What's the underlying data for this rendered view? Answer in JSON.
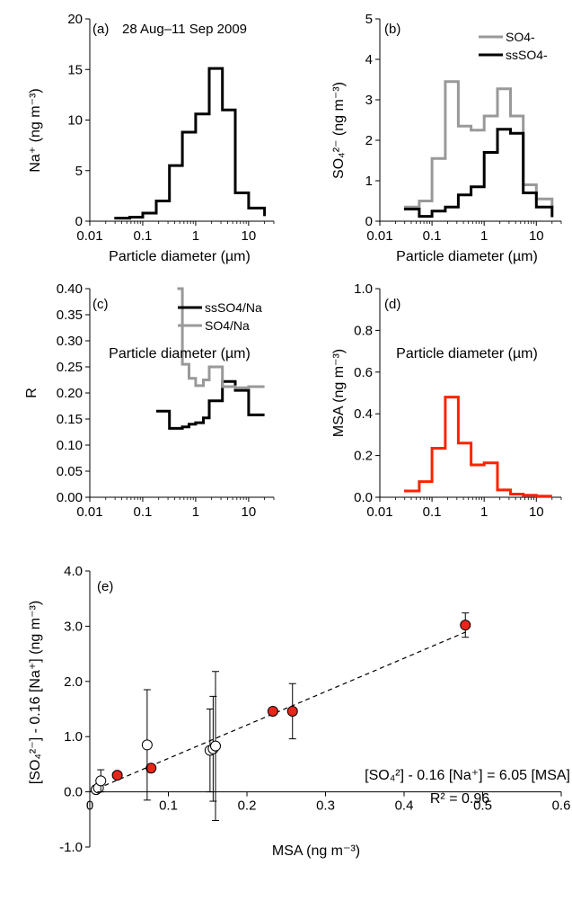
{
  "colors": {
    "black": "#000000",
    "grey": "#999999",
    "red": "#ff2200",
    "marker_red": "#e8261a"
  },
  "chart_data": [
    {
      "id": "a",
      "type": "line",
      "step": true,
      "panel_label": "(a)",
      "annotation": "28 Aug–11 Sep 2009",
      "xlabel": "Particle diameter (µm)",
      "ylabel": "Na⁺ (ng m⁻³)",
      "xscale": "log",
      "xlim": [
        0.01,
        30
      ],
      "ylim": [
        0,
        20
      ],
      "xticks": [
        0.01,
        0.1,
        1,
        10
      ],
      "xtick_labels": [
        "0.01",
        "0.1",
        "1",
        "10"
      ],
      "yticks": [
        0,
        5,
        10,
        15,
        20
      ],
      "ytick_labels": [
        "0",
        "5",
        "10",
        "15",
        "20"
      ],
      "series": [
        {
          "color": "#000000",
          "edges": [
            0.029,
            0.057,
            0.1,
            0.18,
            0.32,
            0.56,
            1.0,
            1.8,
            3.2,
            5.6,
            10,
            20
          ],
          "values": [
            0.3,
            0.4,
            0.8,
            2.0,
            5.5,
            8.8,
            10.6,
            15.1,
            11.0,
            2.8,
            1.3,
            0.5
          ]
        }
      ]
    },
    {
      "id": "b",
      "type": "line",
      "step": true,
      "panel_label": "(b)",
      "xlabel": "Particle diameter (µm)",
      "ylabel": "SO₄²⁻ (ng m⁻³)",
      "xscale": "log",
      "xlim": [
        0.01,
        30
      ],
      "ylim": [
        0,
        5
      ],
      "xticks": [
        0.01,
        0.1,
        1,
        10
      ],
      "xtick_labels": [
        "0.01",
        "0.1",
        "1",
        "10"
      ],
      "yticks": [
        0,
        1,
        2,
        3,
        4,
        5
      ],
      "ytick_labels": [
        "0",
        "1",
        "2",
        "3",
        "4",
        "5"
      ],
      "legend_position": "top-right",
      "series": [
        {
          "name": "SO4-",
          "color": "#999999",
          "edges": [
            0.029,
            0.057,
            0.1,
            0.18,
            0.32,
            0.56,
            1.0,
            1.8,
            3.2,
            5.6,
            10,
            20
          ],
          "values": [
            0.35,
            0.5,
            1.55,
            3.45,
            2.35,
            2.25,
            2.6,
            3.27,
            2.6,
            0.9,
            0.55,
            0.3
          ]
        },
        {
          "name": "ssSO4-",
          "color": "#000000",
          "edges": [
            0.029,
            0.057,
            0.1,
            0.18,
            0.32,
            0.56,
            1.0,
            1.8,
            3.2,
            5.6,
            10,
            20
          ],
          "values": [
            0.3,
            0.12,
            0.25,
            0.35,
            0.65,
            0.85,
            1.7,
            2.27,
            2.17,
            0.7,
            0.35,
            0.1
          ]
        }
      ]
    },
    {
      "id": "c",
      "type": "line",
      "step": true,
      "panel_label": "(c)",
      "xlabel": "Particle diameter (µm)",
      "ylabel": "R",
      "xscale": "log",
      "xlim": [
        0.01,
        30
      ],
      "ylim": [
        0,
        0.4
      ],
      "xticks": [
        0.01,
        0.1,
        1,
        10
      ],
      "xtick_labels": [
        "0.01",
        "0.1",
        "1",
        "10"
      ],
      "yticks": [
        0,
        0.05,
        0.1,
        0.15,
        0.2,
        0.25,
        0.3,
        0.35,
        0.4
      ],
      "ytick_labels": [
        "0.00",
        "0.05",
        "0.10",
        "0.15",
        "0.20",
        "0.25",
        "0.30",
        "0.35",
        "0.40"
      ],
      "legend_position": "top-right",
      "series": [
        {
          "name": "ssSO4/Na",
          "color": "#000000",
          "edges": [
            0.18,
            0.32,
            0.56,
            0.75,
            1.0,
            1.4,
            1.8,
            3.2,
            5.6,
            10,
            20
          ],
          "values": [
            0.165,
            0.132,
            0.135,
            0.14,
            0.143,
            0.152,
            0.185,
            0.222,
            0.205,
            0.158
          ]
        },
        {
          "name": "SO4/Na",
          "color": "#999999",
          "edges": [
            0.45,
            0.56,
            0.75,
            1.0,
            1.4,
            1.8,
            3.2,
            5.6,
            10,
            20
          ],
          "values": [
            0.4,
            0.255,
            0.228,
            0.214,
            0.225,
            0.25,
            0.212,
            0.21,
            0.212
          ]
        }
      ]
    },
    {
      "id": "d",
      "type": "line",
      "step": true,
      "panel_label": "(d)",
      "xlabel": "Particle diameter (µm)",
      "ylabel": "MSA (ng m⁻³)",
      "xscale": "log",
      "xlim": [
        0.01,
        30
      ],
      "ylim": [
        0,
        1
      ],
      "xticks": [
        0.01,
        0.1,
        1,
        10
      ],
      "xtick_labels": [
        "0.01",
        "0.1",
        "1",
        "10"
      ],
      "yticks": [
        0,
        0.2,
        0.4,
        0.6,
        0.8,
        1.0
      ],
      "ytick_labels": [
        "0.0",
        "0.2",
        "0.4",
        "0.6",
        "0.8",
        "1.0"
      ],
      "series": [
        {
          "color": "#ff2200",
          "edges": [
            0.029,
            0.057,
            0.1,
            0.18,
            0.32,
            0.56,
            1.0,
            1.8,
            3.2,
            5.6,
            10,
            20
          ],
          "values": [
            0.03,
            0.075,
            0.235,
            0.48,
            0.26,
            0.155,
            0.165,
            0.035,
            0.015,
            0.01,
            0.005,
            0.005
          ]
        }
      ]
    },
    {
      "id": "e",
      "type": "scatter",
      "panel_label": "(e)",
      "xlabel": "MSA (ng m⁻³)",
      "ylabel": "[SO₄²⁻] - 0.16 [Na⁺] (ng m⁻³)",
      "xlim": [
        0,
        0.6
      ],
      "ylim": [
        -1,
        4
      ],
      "xticks": [
        0,
        0.1,
        0.2,
        0.3,
        0.4,
        0.5,
        0.6
      ],
      "xtick_labels": [
        "0",
        "0.1",
        "0.2",
        "0.3",
        "0.4",
        "0.5",
        "0.6"
      ],
      "yticks": [
        -1,
        0,
        1,
        2,
        3,
        4
      ],
      "ytick_labels": [
        "-1.0",
        "0.0",
        "1.0",
        "2.0",
        "3.0",
        "4.0"
      ],
      "equation": "[SO₄²] - 0.16 [Na⁺] = 6.05 [MSA]",
      "r2": "R² = 0.96",
      "fit": {
        "slope": 6.05,
        "intercept": 0,
        "x_range": [
          0,
          0.48
        ]
      },
      "series": [
        {
          "fill": "#e8261a",
          "points": [
            {
              "x": 0.035,
              "y": 0.3
            },
            {
              "x": 0.078,
              "y": 0.43
            },
            {
              "x": 0.233,
              "y": 1.46
            },
            {
              "x": 0.258,
              "y": 1.46,
              "err": 0.5
            },
            {
              "x": 0.478,
              "y": 3.02,
              "err": 0.22
            }
          ]
        },
        {
          "fill": "#ffffff",
          "points": [
            {
              "x": 0.008,
              "y": 0.04
            },
            {
              "x": 0.011,
              "y": 0.07
            },
            {
              "x": 0.014,
              "y": 0.2,
              "err": 0.2
            },
            {
              "x": 0.073,
              "y": 0.85,
              "err": 1.0
            },
            {
              "x": 0.153,
              "y": 0.75,
              "err": 0.75
            },
            {
              "x": 0.157,
              "y": 0.78,
              "err": 0.95
            },
            {
              "x": 0.16,
              "y": 0.83,
              "err": 1.35
            }
          ]
        }
      ]
    }
  ]
}
